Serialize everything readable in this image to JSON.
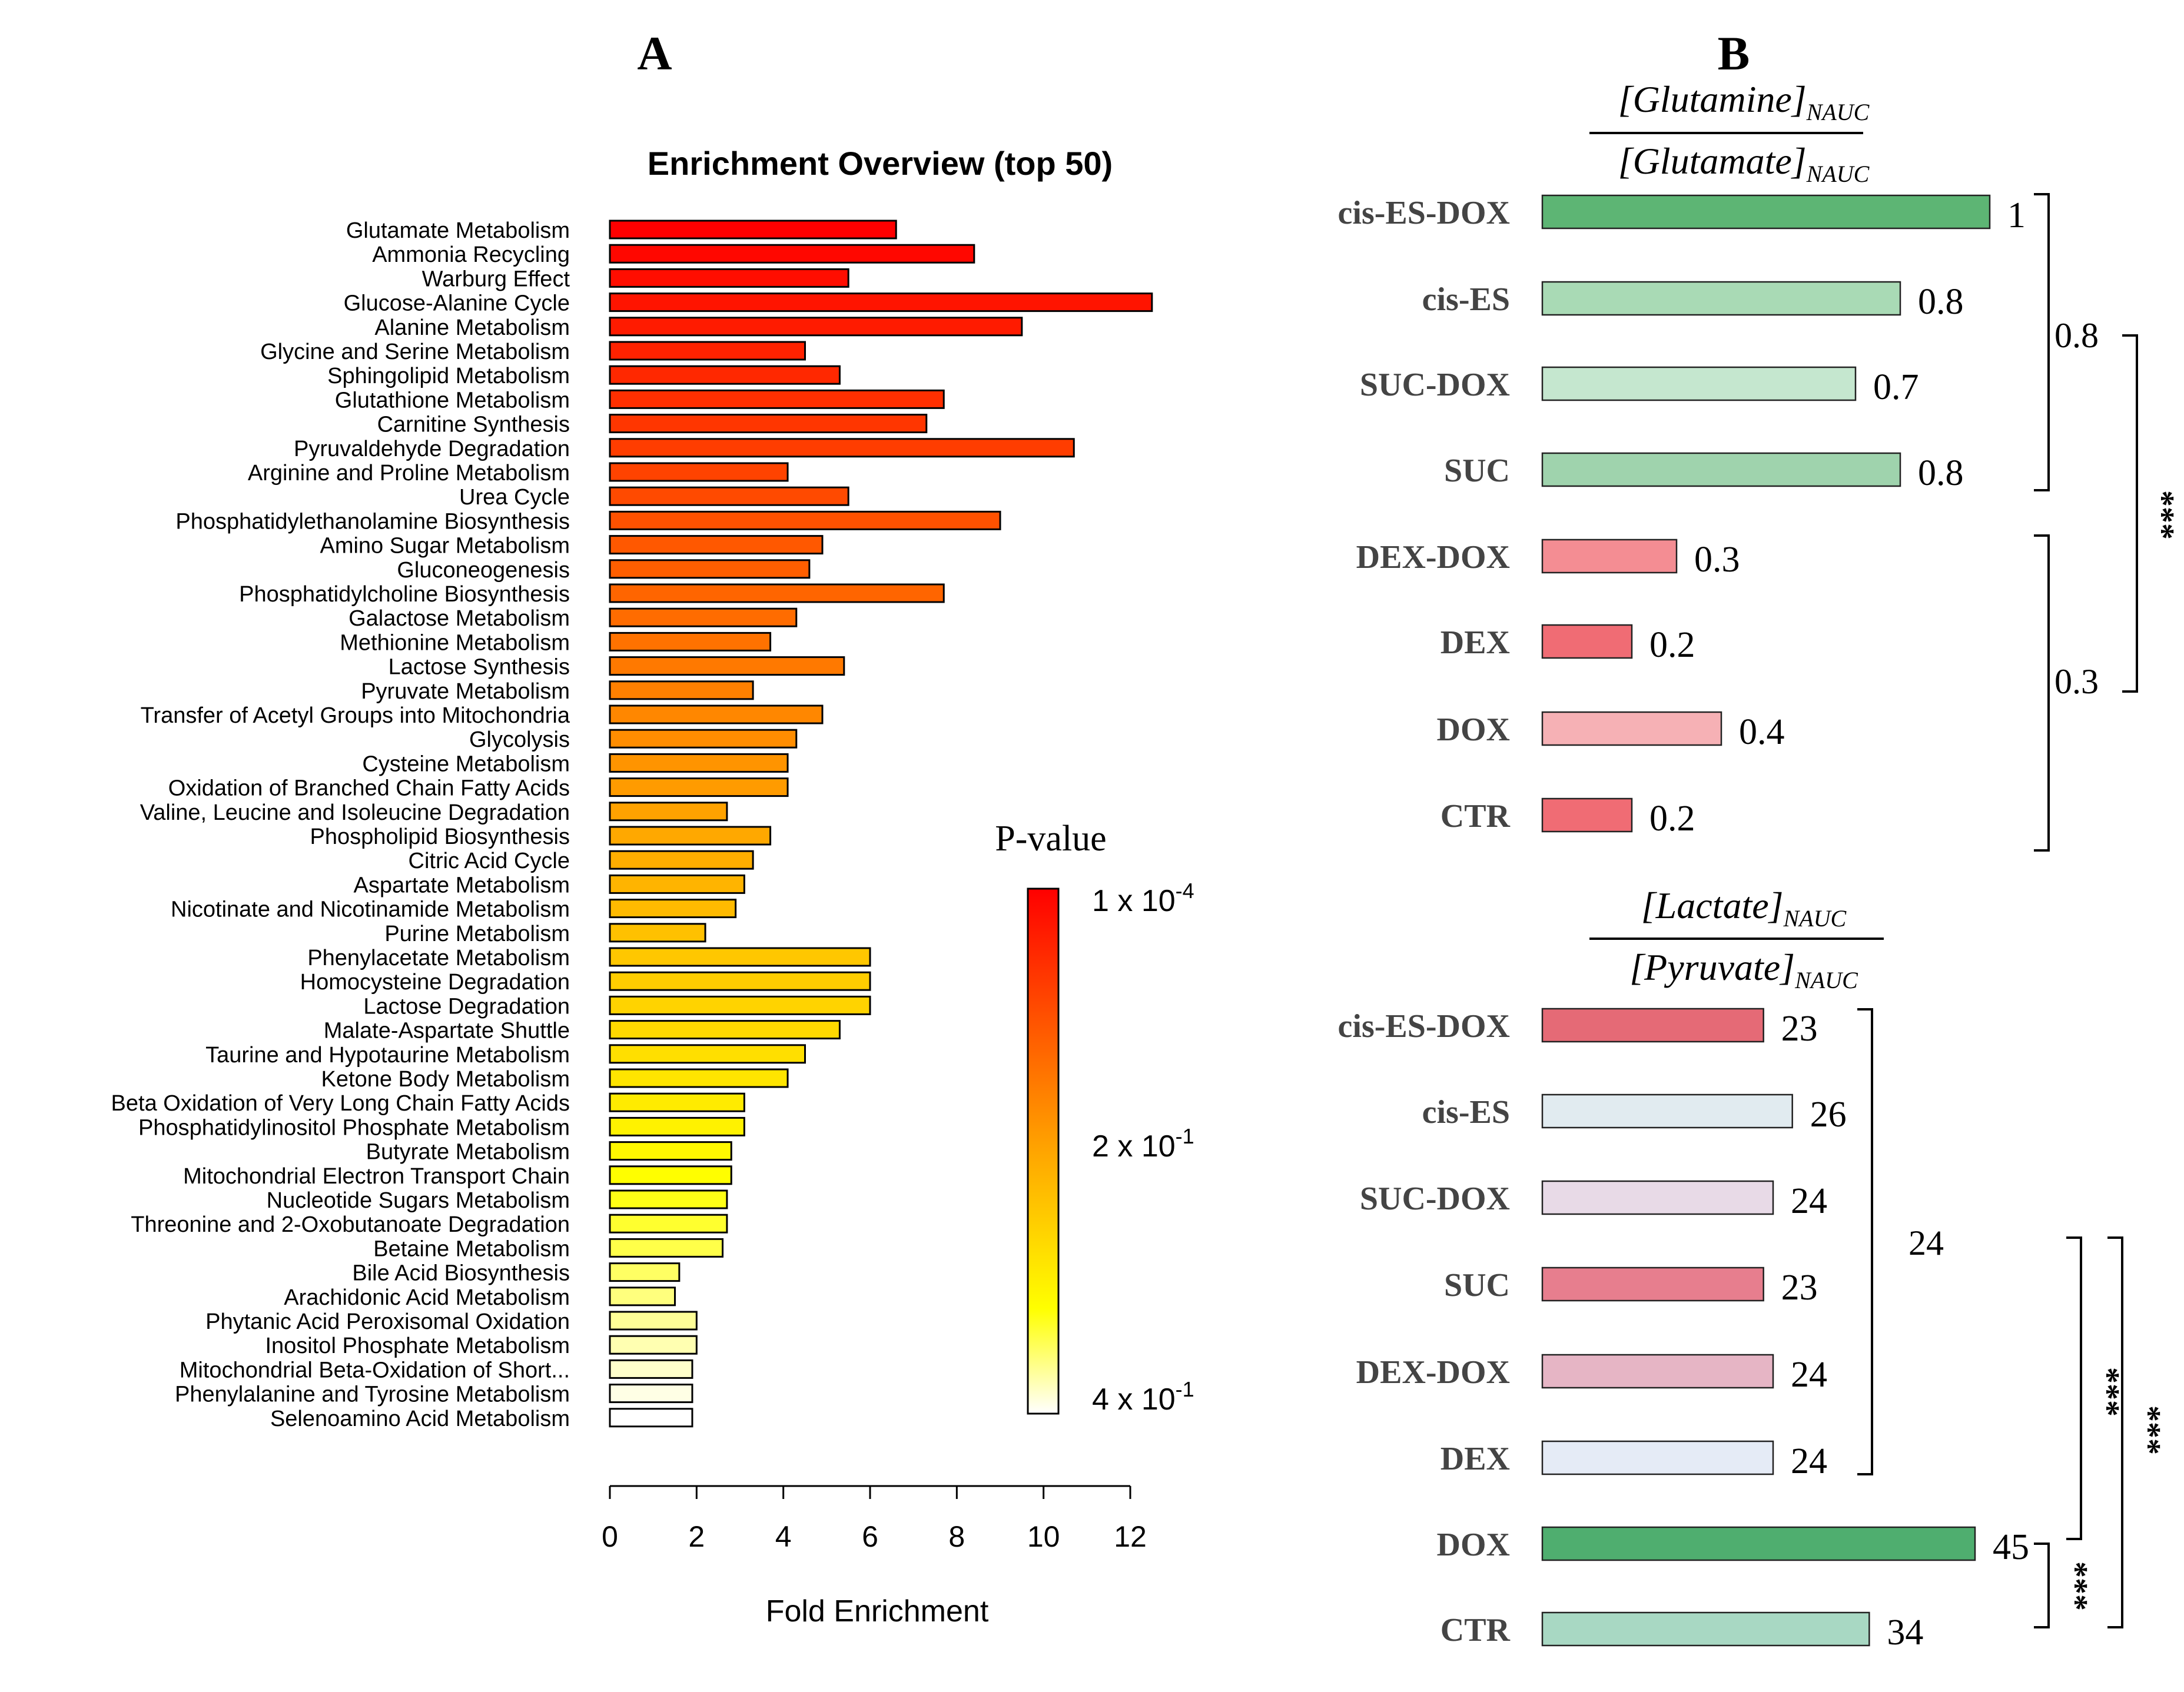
{
  "panel_a_label": "A",
  "panel_b_label": "B",
  "colors": {
    "scale_high": "#ff0000",
    "scale_mid": "#ffa500",
    "scale_low_mid": "#ffff00",
    "scale_low": "#ffffff",
    "outline": "#000000"
  },
  "chart_data": [
    {
      "type": "bar",
      "orientation": "horizontal",
      "title": "Enrichment Overview (top 50)",
      "xlabel": "Fold Enrichment",
      "xlim": [
        0,
        12
      ],
      "xticks": [
        "0",
        "2",
        "4",
        "6",
        "8",
        "10",
        "12"
      ],
      "legend": {
        "title": "P-value",
        "labels": [
          {
            "base": "1 x 10",
            "exp": "-4"
          },
          {
            "base": "2 x 10",
            "exp": "-1"
          },
          {
            "base": "4 x 10",
            "exp": "-1"
          }
        ],
        "placement": "right"
      },
      "categories": [
        "Glutamate Metabolism",
        "Ammonia Recycling",
        "Warburg Effect",
        "Glucose-Alanine Cycle",
        "Alanine Metabolism",
        "Glycine and Serine Metabolism",
        "Sphingolipid Metabolism",
        "Glutathione Metabolism",
        "Carnitine Synthesis",
        "Pyruvaldehyde Degradation",
        "Arginine and Proline Metabolism",
        "Urea Cycle",
        "Phosphatidylethanolamine Biosynthesis",
        "Amino Sugar Metabolism",
        "Gluconeogenesis",
        "Phosphatidylcholine Biosynthesis",
        "Galactose Metabolism",
        "Methionine Metabolism",
        "Lactose Synthesis",
        "Pyruvate Metabolism",
        "Transfer of Acetyl Groups into Mitochondria",
        "Glycolysis",
        "Cysteine Metabolism",
        "Oxidation of Branched Chain Fatty Acids",
        "Valine, Leucine and Isoleucine Degradation",
        "Phospholipid Biosynthesis",
        "Citric Acid Cycle",
        "Aspartate Metabolism",
        "Nicotinate and Nicotinamide Metabolism",
        "Purine Metabolism",
        "Phenylacetate Metabolism",
        "Homocysteine Degradation",
        "Lactose Degradation",
        "Malate-Aspartate Shuttle",
        "Taurine and Hypotaurine Metabolism",
        "Ketone Body Metabolism",
        "Beta Oxidation of Very Long Chain Fatty Acids",
        "Phosphatidylinositol Phosphate Metabolism",
        "Butyrate Metabolism",
        "Mitochondrial Electron Transport Chain",
        "Nucleotide Sugars Metabolism",
        "Threonine and 2-Oxobutanoate Degradation",
        "Betaine Metabolism",
        "Bile Acid Biosynthesis",
        "Arachidonic Acid Metabolism",
        "Phytanic Acid Peroxisomal Oxidation",
        "Inositol Phosphate Metabolism",
        "Mitochondrial Beta-Oxidation of Short...",
        "Phenylalanine and Tyrosine Metabolism",
        "Selenoamino Acid Metabolism"
      ],
      "values": [
        6.6,
        8.4,
        5.5,
        12.5,
        9.5,
        4.5,
        5.3,
        7.7,
        7.3,
        10.7,
        4.1,
        5.5,
        9.0,
        4.9,
        4.6,
        7.7,
        4.3,
        3.7,
        5.4,
        3.3,
        4.9,
        4.3,
        4.1,
        4.1,
        2.7,
        3.7,
        3.3,
        3.1,
        2.9,
        2.2,
        6.0,
        6.0,
        6.0,
        5.3,
        4.5,
        4.1,
        3.1,
        3.1,
        2.8,
        2.8,
        2.7,
        2.7,
        2.6,
        1.6,
        1.5,
        2.0,
        2.0,
        1.9,
        1.9,
        1.9
      ]
    },
    {
      "type": "bar",
      "orientation": "horizontal",
      "title": {
        "numerator": "[Glutamine]",
        "denominator": "[Glutamate]",
        "subscript": "NAUC"
      },
      "xlim": [
        0,
        1
      ],
      "categories": [
        "cis-ES-DOX",
        "cis-ES",
        "SUC-DOX",
        "SUC",
        "DEX-DOX",
        "DEX",
        "DOX",
        "CTR"
      ],
      "values": [
        1,
        0.8,
        0.7,
        0.8,
        0.3,
        0.2,
        0.4,
        0.2
      ],
      "value_labels": [
        "1",
        "0.8",
        "0.7",
        "0.8",
        "0.3",
        "0.2",
        "0.4",
        "0.2"
      ],
      "bar_colors": [
        "#5db574",
        "#a9dab5",
        "#c5e7cf",
        "#9fd3ad",
        "#f48d93",
        "#f06c74",
        "#f6b1b5",
        "#f06c74"
      ],
      "brackets": [
        {
          "label": "0.8",
          "from": "cis-ES-DOX",
          "to": "SUC"
        },
        {
          "label": "0.3",
          "from": "DEX-DOX",
          "to": "CTR"
        },
        {
          "label": "***",
          "from": "0.8 group",
          "to": "0.3 group"
        }
      ]
    },
    {
      "type": "bar",
      "orientation": "horizontal",
      "title": {
        "numerator": "[Lactate]",
        "denominator": "[Pyruvate]",
        "subscript": "NAUC"
      },
      "xlim": [
        0,
        45
      ],
      "categories": [
        "cis-ES-DOX",
        "cis-ES",
        "SUC-DOX",
        "SUC",
        "DEX-DOX",
        "DEX",
        "DOX",
        "CTR"
      ],
      "values": [
        23,
        26,
        24,
        23,
        24,
        24,
        45,
        34
      ],
      "value_labels": [
        "23",
        "26",
        "24",
        "23",
        "24",
        "24",
        "45",
        "34"
      ],
      "bar_colors": [
        "#e56a76",
        "#e1ebf0",
        "#e8dae7",
        "#e77e8e",
        "#e6b5c5",
        "#e5ebf6",
        "#4fae6f",
        "#a8d8c3"
      ],
      "brackets": [
        {
          "label": "24",
          "from": "cis-ES-DOX",
          "to": "DEX"
        },
        {
          "label": "***",
          "from": "24 group",
          "to": "DOX"
        },
        {
          "label": "***",
          "from": "24 group",
          "to": "CTR"
        },
        {
          "label": "***",
          "from": "DOX",
          "to": "CTR"
        }
      ]
    }
  ]
}
